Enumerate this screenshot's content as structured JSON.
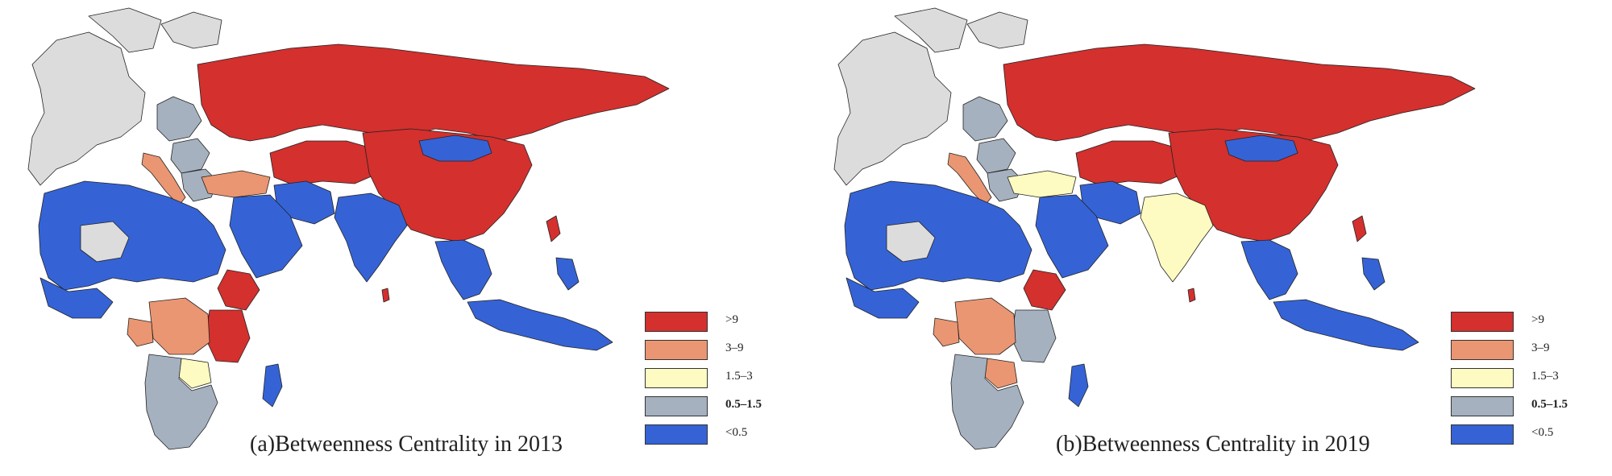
{
  "legend": {
    "items": [
      {
        "label": ">9",
        "color": "#d3302e",
        "bold": false
      },
      {
        "label": "3–9",
        "color": "#ea9672",
        "bold": false
      },
      {
        "label": "1.5–3",
        "color": "#fdfbc1",
        "bold": false
      },
      {
        "label": "0.5–1.5",
        "color": "#a5b1bf",
        "bold": true
      },
      {
        "label": "<0.5",
        "color": "#3563d6",
        "bold": false
      }
    ]
  },
  "colors": {
    "no_data": "#dcdcdc",
    "border": "#222222"
  },
  "panels": [
    {
      "id": "a",
      "caption": "(a)Betweenness Centrality in 2013",
      "regions": {
        "russia": ">9",
        "china": ">9",
        "mongolia": "<0.5",
        "central_asia": ">9",
        "iran": "<0.5",
        "india": "<0.5",
        "arabia": "<0.5",
        "turkey": "3–9",
        "italy": "3–9",
        "balkans": "0.5–1.5",
        "east_europe": "0.5–1.5",
        "north_africa": "<0.5",
        "west_africa": "<0.5",
        "sahara_gap": "no_data",
        "horn_africa": ">9",
        "east_africa": ">9",
        "central_africa": "3–9",
        "congo": "3–9",
        "zambia": "1.5–3",
        "southern_africa": "0.5–1.5",
        "madagascar": "<0.5",
        "se_asia": "<0.5",
        "indonesia": "<0.5",
        "sri_lanka": ">9",
        "korea": ">9",
        "west_europe": "no_data"
      }
    },
    {
      "id": "b",
      "caption": "(b)Betweenness Centrality in 2019",
      "regions": {
        "russia": ">9",
        "china": ">9",
        "mongolia": "<0.5",
        "central_asia": ">9",
        "iran": "<0.5",
        "india": "1.5–3",
        "arabia": "<0.5",
        "turkey": "1.5–3",
        "italy": "3–9",
        "balkans": "0.5–1.5",
        "east_europe": "0.5–1.5",
        "north_africa": "<0.5",
        "west_africa": "<0.5",
        "sahara_gap": "no_data",
        "horn_africa": ">9",
        "east_africa": "0.5–1.5",
        "central_africa": "3–9",
        "congo": "3–9",
        "zambia": "3–9",
        "southern_africa": "0.5–1.5",
        "madagascar": "<0.5",
        "se_asia": "<0.5",
        "indonesia": "<0.5",
        "sri_lanka": ">9",
        "korea": ">9",
        "west_europe": "no_data"
      }
    }
  ]
}
